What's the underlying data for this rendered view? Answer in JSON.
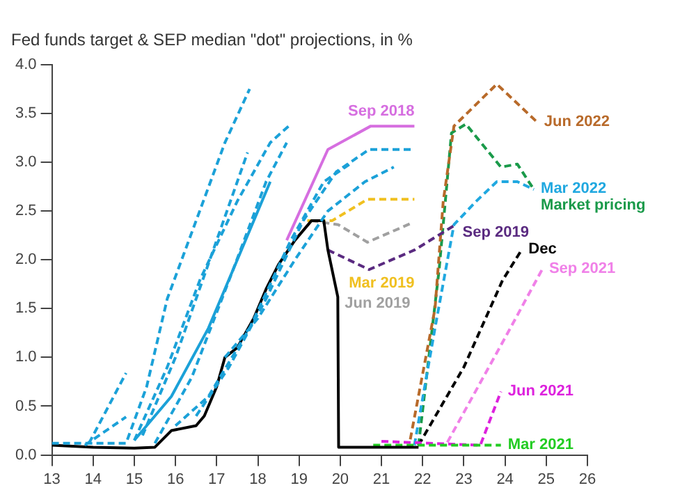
{
  "chart_data": {
    "type": "line",
    "title": "Fed funds target & SEP median \"dot\" projections, in %",
    "xlim": [
      13,
      26
    ],
    "xticks": [
      13,
      14,
      15,
      16,
      17,
      18,
      19,
      20,
      21,
      22,
      23,
      24,
      25,
      26
    ],
    "ylim": [
      0,
      4
    ],
    "yticks": [
      {
        "value": 0,
        "label": "0.0"
      },
      {
        "value": 0.5,
        "label": "0.5"
      },
      {
        "value": 1,
        "label": "1.0"
      },
      {
        "value": 1.5,
        "label": "1.5"
      },
      {
        "value": 2,
        "label": "2.0"
      },
      {
        "value": 2.5,
        "label": "2.5"
      },
      {
        "value": 3,
        "label": "3.0"
      },
      {
        "value": 3.5,
        "label": "3.5"
      },
      {
        "value": 4,
        "label": "4.0"
      }
    ],
    "grid": false,
    "legend": false,
    "marker": "none",
    "series": [
      {
        "color": "#1ba1d8",
        "line_style": "dashed",
        "x": [
          13,
          14.8,
          15.3,
          15.8,
          16.5,
          17.2,
          17.8
        ],
        "values": [
          0.12,
          0.12,
          0.7,
          1.6,
          2.4,
          3.2,
          3.75
        ]
      },
      {
        "color": "#1ba1d8",
        "line_style": "dashed",
        "x": [
          13.9,
          14.8
        ],
        "values": [
          0.12,
          0.84
        ]
      },
      {
        "color": "#1ba1d8",
        "line_style": "dashed",
        "x": [
          13.8,
          14.8
        ],
        "values": [
          0.1,
          0.39
        ]
      },
      {
        "color": "#1ba1d8",
        "line_style": "dashed",
        "x": [
          15.0,
          15.8,
          16.6,
          17.5,
          18.3,
          18.8
        ],
        "values": [
          0.15,
          0.9,
          1.8,
          2.6,
          3.2,
          3.39
        ]
      },
      {
        "color": "#1ba1d8",
        "line_style": "dashed",
        "x": [
          15.2,
          16.0,
          17.0,
          17.75
        ],
        "values": [
          0.2,
          1.0,
          2.2,
          3.1
        ]
      },
      {
        "color": "#1ba1d8",
        "line_style": "dashed",
        "x": [
          15.5,
          16.4,
          17.4,
          18.2,
          18.7
        ],
        "values": [
          0.12,
          0.8,
          1.9,
          2.8,
          3.2
        ]
      },
      {
        "color": "#1ba1d8",
        "line_style": "solid",
        "x": [
          15.0,
          15.9,
          16.8,
          17.6,
          18.3
        ],
        "values": [
          0.15,
          0.6,
          1.3,
          2.1,
          2.8
        ]
      },
      {
        "color": "#1ba1d8",
        "line_style": "dashed",
        "x": [
          16.0,
          16.8,
          17.8,
          18.8,
          19.6,
          20.3
        ],
        "values": [
          0.3,
          0.6,
          1.3,
          2.2,
          2.8,
          3.0
        ]
      },
      {
        "color": "#1ba1d8",
        "line_style": "dashed",
        "x": [
          16.5,
          17.3,
          18.2,
          19.1,
          19.9,
          20.7,
          21.8
        ],
        "values": [
          0.4,
          0.9,
          1.6,
          2.4,
          2.9,
          3.13,
          3.13
        ]
      },
      {
        "color": "#1ba1d8",
        "line_style": "dashed",
        "x": [
          17.2,
          18.0,
          18.9,
          19.7,
          20.6,
          21.3
        ],
        "values": [
          1.0,
          1.4,
          2.0,
          2.5,
          2.8,
          2.95
        ]
      },
      {
        "color": "#000000",
        "line_style": "solid",
        "x": [
          13,
          14,
          15,
          15.5,
          15.9,
          16.5,
          16.7,
          17.0,
          17.2,
          17.5,
          17.9,
          18.2,
          18.5,
          18.9,
          19.3,
          19.6,
          19.7,
          19.94,
          19.96,
          21.9
        ],
        "values": [
          0.1,
          0.08,
          0.07,
          0.08,
          0.25,
          0.3,
          0.4,
          0.7,
          1.0,
          1.1,
          1.4,
          1.7,
          1.95,
          2.2,
          2.4,
          2.4,
          2.1,
          1.62,
          0.08,
          0.08
        ]
      },
      {
        "name": "Sep 2018",
        "color": "#d66ee0",
        "line_style": "solid",
        "x": [
          18.7,
          19.7,
          20.74,
          21.8
        ],
        "values": [
          2.2,
          3.13,
          3.37,
          3.37
        ]
      },
      {
        "name": "Mar 2019",
        "color": "#f0c020",
        "line_style": "dashed",
        "x": [
          19.2,
          19.8,
          20.66,
          21.8
        ],
        "values": [
          2.4,
          2.4,
          2.62,
          2.62
        ]
      },
      {
        "name": "Jun 2019",
        "color": "#a0a0a0",
        "line_style": "dashed",
        "x": [
          19.3,
          19.95,
          20.66,
          21.7
        ],
        "values": [
          2.4,
          2.36,
          2.18,
          2.37
        ]
      },
      {
        "name": "Sep 2019",
        "color": "#5a2a80",
        "line_style": "dashed",
        "x": [
          19.7,
          20.7,
          21.8,
          22.8
        ],
        "values": [
          2.1,
          1.9,
          2.1,
          2.36
        ]
      },
      {
        "name": "Mar 2021",
        "color": "#22cc22",
        "line_style": "dashed",
        "x": [
          20.8,
          23.9
        ],
        "values": [
          0.1,
          0.1
        ]
      },
      {
        "name": "Jun 2021",
        "color": "#dd22dd",
        "line_style": "dashed",
        "x": [
          21.0,
          23.4,
          23.9
        ],
        "values": [
          0.14,
          0.1,
          0.65
        ]
      },
      {
        "name": "Sep 2021",
        "color": "#f080e8",
        "line_style": "dashed",
        "x": [
          22.6,
          24.0,
          24.9
        ],
        "values": [
          0.13,
          1.2,
          1.9
        ]
      },
      {
        "name": "Dec",
        "color": "#000000",
        "line_style": "dashed",
        "x": [
          21.9,
          23.0,
          23.94,
          24.4
        ],
        "values": [
          0.1,
          0.9,
          1.79,
          2.1
        ]
      },
      {
        "name": "Mar 2022",
        "color": "#20a8e0",
        "line_style": "dashed",
        "x": [
          21.8,
          22.3,
          22.76,
          23.3,
          23.8,
          24.3,
          24.7
        ],
        "values": [
          0.1,
          1.3,
          2.36,
          2.6,
          2.8,
          2.8,
          2.72
        ]
      },
      {
        "name": "Jun 2022",
        "color": "#b86a2a",
        "line_style": "dashed",
        "x": [
          21.7,
          22.3,
          22.5,
          22.76,
          23.8,
          24.78
        ],
        "values": [
          0.16,
          1.5,
          2.6,
          3.37,
          3.8,
          3.41
        ]
      },
      {
        "name": "Market pricing",
        "color": "#1a9a4a",
        "line_style": "dashed",
        "x": [
          21.9,
          22.4,
          22.7,
          23.05,
          23.9,
          24.3,
          24.7
        ],
        "values": [
          0.1,
          1.9,
          3.3,
          3.39,
          2.95,
          2.98,
          2.72
        ]
      }
    ]
  }
}
